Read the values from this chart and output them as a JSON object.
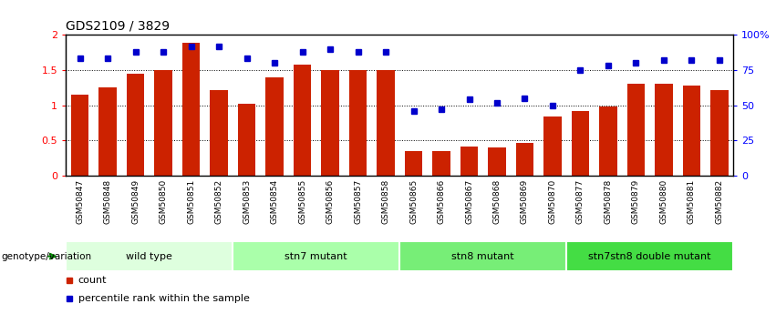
{
  "title": "GDS2109 / 3829",
  "samples": [
    "GSM50847",
    "GSM50848",
    "GSM50849",
    "GSM50850",
    "GSM50851",
    "GSM50852",
    "GSM50853",
    "GSM50854",
    "GSM50855",
    "GSM50856",
    "GSM50857",
    "GSM50858",
    "GSM50865",
    "GSM50866",
    "GSM50867",
    "GSM50868",
    "GSM50869",
    "GSM50870",
    "GSM50877",
    "GSM50878",
    "GSM50879",
    "GSM50880",
    "GSM50881",
    "GSM50882"
  ],
  "bar_values": [
    1.15,
    1.25,
    1.45,
    1.5,
    1.88,
    1.22,
    1.02,
    1.4,
    1.58,
    1.5,
    1.5,
    1.5,
    0.35,
    0.35,
    0.42,
    0.4,
    0.46,
    0.84,
    0.92,
    0.98,
    1.3,
    1.3,
    1.28,
    1.22
  ],
  "dot_values_pct": [
    83,
    83,
    88,
    88,
    92,
    92,
    83,
    80,
    88,
    90,
    88,
    88,
    46,
    47,
    54,
    52,
    55,
    50,
    75,
    78,
    80,
    82,
    82,
    82
  ],
  "groups": [
    {
      "label": "wild type",
      "start": 0,
      "end": 5,
      "color": "#deffde"
    },
    {
      "label": "stn7 mutant",
      "start": 6,
      "end": 11,
      "color": "#aaffaa"
    },
    {
      "label": "stn8 mutant",
      "start": 12,
      "end": 17,
      "color": "#77ee77"
    },
    {
      "label": "stn7stn8 double mutant",
      "start": 18,
      "end": 23,
      "color": "#44dd44"
    }
  ],
  "bar_color": "#cc2200",
  "dot_color": "#0000cc",
  "ylim_left": [
    0,
    2.0
  ],
  "ylim_right": [
    0,
    100
  ],
  "yticks_left": [
    0,
    0.5,
    1.0,
    1.5,
    2.0
  ],
  "ytick_labels_left": [
    "0",
    "0.5",
    "1",
    "1.5",
    "2"
  ],
  "yticks_right": [
    0,
    25,
    50,
    75,
    100
  ],
  "ytick_labels_right": [
    "0",
    "25",
    "50",
    "75",
    "100%"
  ],
  "hlines": [
    0.5,
    1.0,
    1.5
  ],
  "legend_color_bar": "#cc2200",
  "legend_color_dot": "#0000cc",
  "legend_label_bar": "count",
  "legend_label_dot": "percentile rank within the sample",
  "genotype_label": "genotype/variation",
  "xtick_bg_color": "#cccccc",
  "group_border_color": "#ffffff",
  "arrow_color": "#008800"
}
